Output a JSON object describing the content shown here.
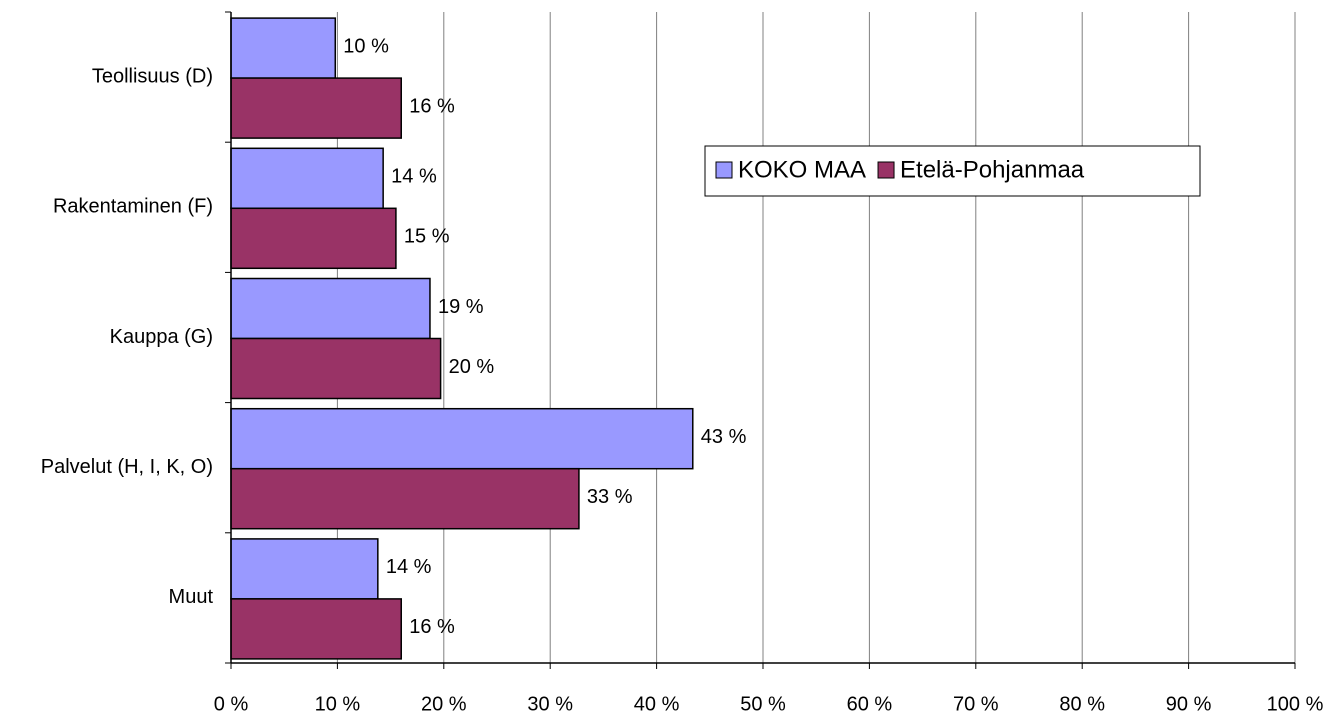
{
  "chart_data": {
    "type": "hbar",
    "categories": [
      "Teollisuus (D)",
      "Rakentaminen (F)",
      "Kauppa (G)",
      "Palvelut (H, I, K, O)",
      "Muut"
    ],
    "series": [
      {
        "name": "KOKO MAA",
        "color": "#9999ff",
        "values": [
          9.8,
          14.3,
          18.7,
          43.4,
          13.8
        ],
        "value_labels": [
          "10 %",
          "14 %",
          "19 %",
          "43 %",
          "14 %"
        ]
      },
      {
        "name": "Etelä-Pohjanmaa",
        "color": "#993366",
        "values": [
          16.0,
          15.5,
          19.7,
          32.7,
          16.0
        ],
        "value_labels": [
          "16 %",
          "15 %",
          "20 %",
          "33 %",
          "16 %"
        ]
      }
    ],
    "xlim": [
      0,
      100
    ],
    "xticks": [
      {
        "value": 0,
        "label": "0 %"
      },
      {
        "value": 10,
        "label": "10 %"
      },
      {
        "value": 20,
        "label": "20 %"
      },
      {
        "value": 30,
        "label": "30 %"
      },
      {
        "value": 40,
        "label": "40 %"
      },
      {
        "value": 50,
        "label": "50 %"
      },
      {
        "value": 60,
        "label": "60 %"
      },
      {
        "value": 70,
        "label": "70 %"
      },
      {
        "value": 80,
        "label": "80 %"
      },
      {
        "value": 90,
        "label": "90 %"
      },
      {
        "value": 100,
        "label": "100 %"
      }
    ],
    "grid": true
  }
}
